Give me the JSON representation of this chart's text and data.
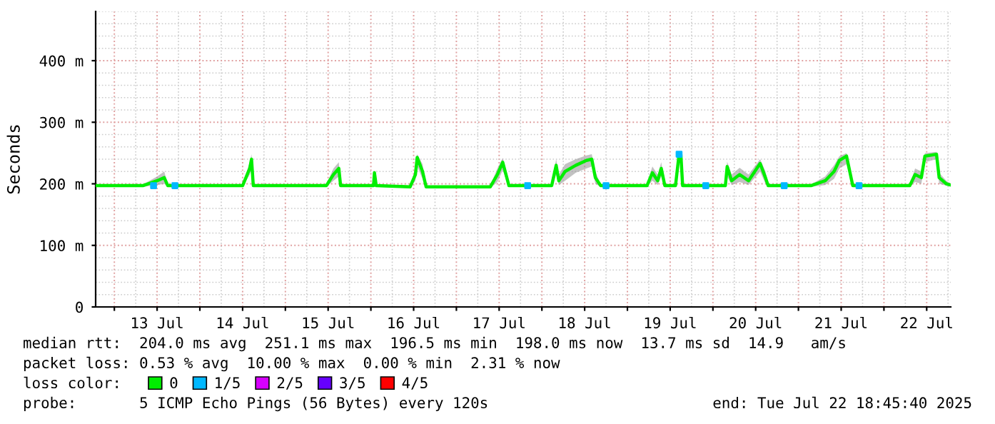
{
  "chart_data": {
    "type": "line",
    "ylabel": "Seconds",
    "x": [
      "2025-07-12T18:45",
      "2025-07-13T08:00",
      "2025-07-13T12:00",
      "2025-07-13T14:00",
      "2025-07-13T15:00",
      "2025-07-14T12:00",
      "2025-07-14T14:00",
      "2025-07-14T14:30",
      "2025-07-14T15:00",
      "2025-07-15T11:30",
      "2025-07-15T13:30",
      "2025-07-15T15:00",
      "2025-07-15T15:30",
      "2025-07-16T00:45",
      "2025-07-16T01:00",
      "2025-07-16T01:30",
      "2025-07-16T11:00",
      "2025-07-16T12:30",
      "2025-07-16T13:00",
      "2025-07-16T14:30",
      "2025-07-16T15:30",
      "2025-07-17T09:30",
      "2025-07-17T11:30",
      "2025-07-17T13:00",
      "2025-07-17T14:45",
      "2025-07-18T02:45",
      "2025-07-18T04:00",
      "2025-07-18T04:45",
      "2025-07-18T06:30",
      "2025-07-18T09:30",
      "2025-07-18T12:30",
      "2025-07-18T14:00",
      "2025-07-18T15:00",
      "2025-07-18T16:30",
      "2025-07-19T05:30",
      "2025-07-19T07:00",
      "2025-07-19T08:30",
      "2025-07-19T09:30",
      "2025-07-19T10:30",
      "2025-07-19T13:30",
      "2025-07-19T14:30",
      "2025-07-19T15:00",
      "2025-07-19T15:30",
      "2025-07-20T03:30",
      "2025-07-20T04:00",
      "2025-07-20T05:15",
      "2025-07-20T07:30",
      "2025-07-20T10:00",
      "2025-07-20T13:15",
      "2025-07-20T14:45",
      "2025-07-20T15:30",
      "2025-07-21T03:30",
      "2025-07-21T07:30",
      "2025-07-21T10:00",
      "2025-07-21T11:30",
      "2025-07-21T13:30",
      "2025-07-21T15:15",
      "2025-07-22T07:15",
      "2025-07-22T08:45",
      "2025-07-22T10:30",
      "2025-07-22T11:30",
      "2025-07-22T14:45",
      "2025-07-22T15:30",
      "2025-07-22T17:30",
      "2025-07-22T18:45"
    ],
    "series": [
      {
        "name": "0",
        "color": "#00ee00",
        "values": [
          197,
          197,
          205,
          210,
          197,
          197,
          225,
          240,
          197,
          197,
          215,
          225,
          197,
          197,
          218,
          197,
          195,
          215,
          243,
          220,
          195,
          195,
          215,
          235,
          197,
          197,
          230,
          205,
          220,
          230,
          238,
          240,
          210,
          197,
          197,
          218,
          205,
          225,
          197,
          197,
          248,
          248,
          197,
          197,
          228,
          205,
          215,
          205,
          233,
          210,
          197,
          197,
          205,
          220,
          238,
          245,
          197,
          197,
          215,
          210,
          245,
          248,
          210,
          200,
          198
        ],
        "lower": [
          195,
          195,
          198,
          200,
          195,
          195,
          215,
          225,
          195,
          195,
          205,
          212,
          195,
          195,
          205,
          195,
          193,
          205,
          228,
          208,
          193,
          193,
          203,
          222,
          195,
          195,
          215,
          198,
          205,
          218,
          225,
          228,
          200,
          195,
          195,
          205,
          198,
          212,
          195,
          195,
          238,
          238,
          195,
          195,
          212,
          198,
          203,
          198,
          220,
          200,
          195,
          195,
          198,
          208,
          225,
          232,
          195,
          195,
          203,
          200,
          235,
          240,
          200,
          197,
          196
        ],
        "upper": [
          199,
          199,
          212,
          220,
          199,
          199,
          235,
          248,
          199,
          199,
          225,
          235,
          199,
          199,
          222,
          199,
          197,
          225,
          248,
          232,
          197,
          197,
          225,
          242,
          199,
          199,
          240,
          215,
          232,
          240,
          246,
          248,
          220,
          199,
          199,
          228,
          215,
          235,
          199,
          199,
          252,
          252,
          199,
          199,
          236,
          215,
          226,
          215,
          240,
          220,
          199,
          199,
          212,
          230,
          245,
          250,
          199,
          199,
          225,
          220,
          250,
          252,
          218,
          205,
          200
        ]
      },
      {
        "name": "1/5",
        "type": "scatter",
        "marker": "square",
        "color": "#00b8ff",
        "x": [
          "2025-07-13T11:00",
          "2025-07-13T17:00",
          "2025-07-17T20:00",
          "2025-07-18T18:00",
          "2025-07-19T14:30",
          "2025-07-19T22:00",
          "2025-07-20T20:00",
          "2025-07-21T17:00"
        ],
        "values": [
          197,
          197,
          197,
          197,
          248,
          197,
          197,
          197
        ]
      },
      {
        "name": "2/5",
        "color": "#d600ff",
        "values": [
          null,
          null,
          null,
          null,
          null,
          null,
          null,
          null,
          null,
          null,
          null,
          null,
          null,
          null,
          null,
          null,
          null,
          null,
          null,
          null,
          null,
          null,
          null,
          null,
          null,
          null,
          null,
          null,
          null,
          null,
          null,
          null,
          null,
          null,
          null,
          null,
          null,
          null,
          null,
          null,
          null,
          null,
          null,
          null,
          null,
          null,
          null,
          null,
          null,
          null,
          null,
          null,
          null,
          null,
          null,
          null,
          null,
          null,
          null,
          null,
          null,
          null,
          null,
          null,
          null
        ]
      },
      {
        "name": "3/5",
        "color": "#6600ff",
        "values": [
          null,
          null,
          null,
          null,
          null,
          null,
          null,
          null,
          null,
          null,
          null,
          null,
          null,
          null,
          null,
          null,
          null,
          null,
          null,
          null,
          null,
          null,
          null,
          null,
          null,
          null,
          null,
          null,
          null,
          null,
          null,
          null,
          null,
          null,
          null,
          null,
          null,
          null,
          null,
          null,
          null,
          null,
          null,
          null,
          null,
          null,
          null,
          null,
          null,
          null,
          null,
          null,
          null,
          null,
          null,
          null,
          null,
          null,
          null,
          null,
          null,
          null,
          null,
          null,
          null
        ]
      },
      {
        "name": "4/5",
        "color": "#ff0000",
        "values": [
          null,
          null,
          null,
          null,
          null,
          null,
          null,
          null,
          null,
          null,
          null,
          null,
          null,
          null,
          null,
          null,
          null,
          null,
          null,
          null,
          null,
          null,
          null,
          null,
          null,
          null,
          null,
          null,
          null,
          null,
          null,
          null,
          null,
          null,
          null,
          null,
          null,
          null,
          null,
          null,
          null,
          null,
          null,
          null,
          null,
          null,
          null,
          null,
          null,
          null,
          null,
          null,
          null,
          null,
          null,
          null,
          null,
          null,
          null,
          null,
          null,
          null,
          null,
          null,
          null
        ]
      }
    ],
    "legend": "bottom",
    "legend_title": "loss color:",
    "grid": true,
    "marker": "none",
    "line_style": "solid",
    "xlim": [
      "2025-07-12T18:45",
      "2025-07-22T18:45"
    ],
    "xticks": [
      {
        "value": "2025-07-13T00:00",
        "label": null
      },
      {
        "value": "2025-07-13T12:00",
        "label": "13 Jul"
      },
      {
        "value": "2025-07-14T00:00",
        "label": null
      },
      {
        "value": "2025-07-14T12:00",
        "label": "14 Jul"
      },
      {
        "value": "2025-07-15T00:00",
        "label": null
      },
      {
        "value": "2025-07-15T12:00",
        "label": "15 Jul"
      },
      {
        "value": "2025-07-16T00:00",
        "label": null
      },
      {
        "value": "2025-07-16T12:00",
        "label": "16 Jul"
      },
      {
        "value": "2025-07-17T00:00",
        "label": null
      },
      {
        "value": "2025-07-17T12:00",
        "label": "17 Jul"
      },
      {
        "value": "2025-07-18T00:00",
        "label": null
      },
      {
        "value": "2025-07-18T12:00",
        "label": "18 Jul"
      },
      {
        "value": "2025-07-19T00:00",
        "label": null
      },
      {
        "value": "2025-07-19T12:00",
        "label": "19 Jul"
      },
      {
        "value": "2025-07-20T00:00",
        "label": null
      },
      {
        "value": "2025-07-20T12:00",
        "label": "20 Jul"
      },
      {
        "value": "2025-07-21T00:00",
        "label": null
      },
      {
        "value": "2025-07-21T12:00",
        "label": "21 Jul"
      },
      {
        "value": "2025-07-22T00:00",
        "label": null
      },
      {
        "value": "2025-07-22T12:00",
        "label": "22 Jul"
      }
    ],
    "ylim": [
      0,
      480
    ],
    "yticks": [
      0,
      {
        "value": 100,
        "label": "100 m"
      },
      {
        "value": 200,
        "label": "200 m"
      },
      {
        "value": 300,
        "label": "300 m"
      },
      {
        "value": 400,
        "label": "400 m"
      }
    ],
    "annotations": [
      "median rtt:  204.0 ms avg  251.1 ms max  196.5 ms min  198.0 ms now  13.7 ms sd  14.9   am/s",
      "packet loss: 0.53 % avg  10.00 % max  0.00 % min  2.31 % now",
      "probe:       5 ICMP Echo Pings (56 Bytes) every 120s",
      "end: Tue Jul 22 18:45:40 2025"
    ]
  }
}
